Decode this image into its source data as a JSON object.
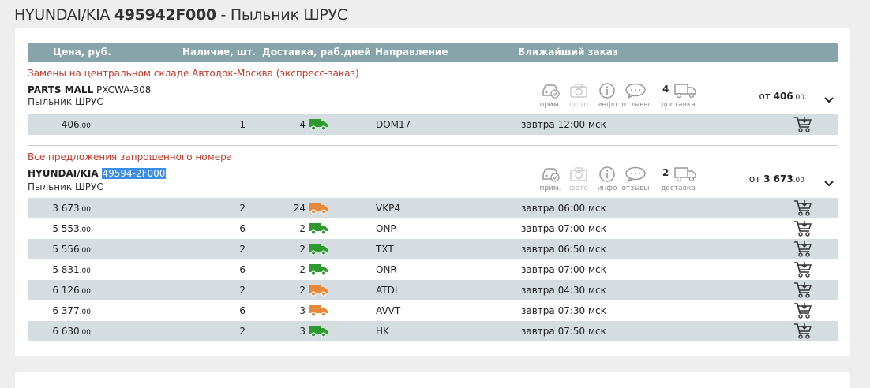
{
  "title": {
    "brand": "HYUNDAI/KIA",
    "part": "495942F000",
    "sep": " - ",
    "name": "Пыльник ШРУС"
  },
  "table_header": {
    "price": "Цена, руб.",
    "stock": "Наличие, шт.",
    "delivery": "Доставка, раб.дней",
    "direction": "Направление",
    "nearest": "Ближайший заказ"
  },
  "icon_labels": {
    "prim": "прим.",
    "photo": "фото",
    "info": "инфо",
    "reviews": "отзывы",
    "delivery": "доставка"
  },
  "colors": {
    "header_bg": "#87a4aa",
    "odd_row": "#d5dde0",
    "section_title": "#c0392b",
    "truck_green": "#2e9a2e",
    "truck_orange": "#e8893a",
    "selection": "#3a8ee6"
  },
  "sections": [
    {
      "title": "Замены на центральном складе Автодок-Москва (экспресс-заказ)",
      "brand": "PARTS MALL",
      "code": "PXCWA-308",
      "desc": "Пыльник ШРУС",
      "delivery_count": "4",
      "from_label": "от",
      "from_int": "406",
      "from_dec": ".00",
      "rows": [
        {
          "price_int": "406",
          "price_dec": ".00",
          "qty": "1",
          "days": "4",
          "truck": "green",
          "dir": "DOM17",
          "nearest": "завтра 12:00 мск"
        }
      ]
    },
    {
      "title": "Все предложения запрошенного номера",
      "brand": "HYUNDAI/KIA",
      "code": "49594-2F000",
      "desc": "Пыльник ШРУС",
      "delivery_count": "2",
      "from_label": "от",
      "from_int": "3 673",
      "from_dec": ".00",
      "rows": [
        {
          "price_int": "3 673",
          "price_dec": ".00",
          "qty": "2",
          "days": "24",
          "truck": "orange",
          "dir": "VKP4",
          "nearest": "завтра 06:00 мск"
        },
        {
          "price_int": "5 553",
          "price_dec": ".00",
          "qty": "6",
          "days": "2",
          "truck": "green",
          "dir": "ONP",
          "nearest": "завтра 07:00 мск"
        },
        {
          "price_int": "5 556",
          "price_dec": ".00",
          "qty": "2",
          "days": "2",
          "truck": "green",
          "dir": "TXT",
          "nearest": "завтра 06:50 мск"
        },
        {
          "price_int": "5 831",
          "price_dec": ".00",
          "qty": "6",
          "days": "2",
          "truck": "green",
          "dir": "ONR",
          "nearest": "завтра 07:00 мск"
        },
        {
          "price_int": "6 126",
          "price_dec": ".00",
          "qty": "2",
          "days": "2",
          "truck": "orange",
          "dir": "ATDL",
          "nearest": "завтра 04:30 мск"
        },
        {
          "price_int": "6 377",
          "price_dec": ".00",
          "qty": "6",
          "days": "3",
          "truck": "orange",
          "dir": "AVVT",
          "nearest": "завтра 07:30 мск"
        },
        {
          "price_int": "6 630",
          "price_dec": ".00",
          "qty": "2",
          "days": "3",
          "truck": "green",
          "dir": "HK",
          "nearest": "завтра 07:50 мск"
        }
      ]
    }
  ]
}
